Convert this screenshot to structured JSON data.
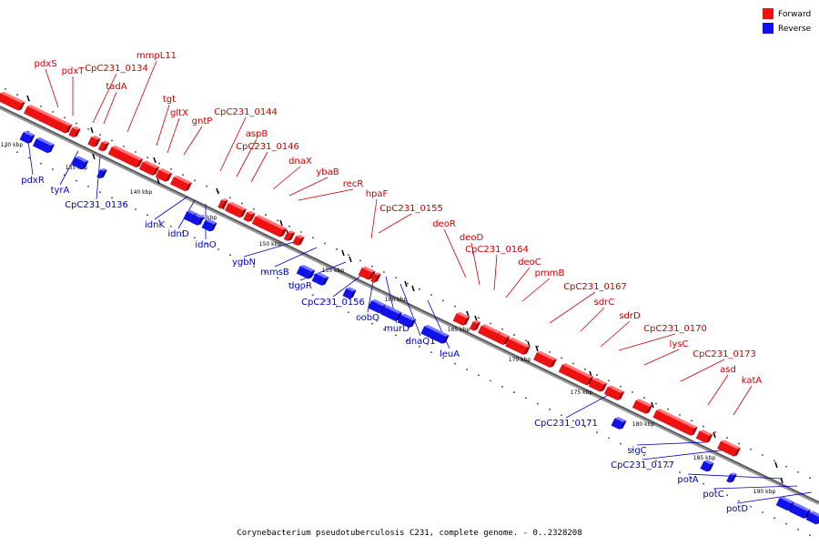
{
  "legend": {
    "forward_label": "Forward",
    "reverse_label": "Reverse",
    "forward_color": "#ee1111",
    "reverse_color": "#1111ee"
  },
  "caption": "Corynebacterium pseudotuberculosis C231, complete genome. - 0..2328208",
  "ticks": [
    "130 kbp",
    "135 kbp",
    "140 kbp",
    "145 kbp",
    "150 kbp",
    "155 kbp",
    "160 kbp",
    "165 kbp",
    "170 kbp",
    "175 kbp",
    "180 kbp",
    "185 kbp",
    "190 kbp"
  ],
  "forward_genes": [
    "pdxS",
    "pdxT",
    "CpC231_0134",
    "tadA",
    "mmpL11",
    "tgt",
    "gltX",
    "gntP",
    "CpC231_0144",
    "aspB",
    "CpC231_0146",
    "dnaX",
    "ybaB",
    "recR",
    "hpaF",
    "CpC231_0155",
    "deoR",
    "deoD",
    "CpC231_0164",
    "deoC",
    "pmmB",
    "CpC231_0167",
    "sdrC",
    "sdrD",
    "CpC231_0170",
    "lysC",
    "CpC231_0173",
    "asd",
    "katA"
  ],
  "reverse_genes": [
    "pdxR",
    "tyrA",
    "CpC231_0136",
    "idnK",
    "idnD",
    "idnO",
    "ygbN",
    "mmsB",
    "dgoR",
    "CpC231_0156",
    "cobQ",
    "murD",
    "dnaQ1",
    "leuA",
    "CpC231_0171",
    "sigC",
    "CpC231_0177",
    "potA",
    "potC",
    "potD"
  ]
}
